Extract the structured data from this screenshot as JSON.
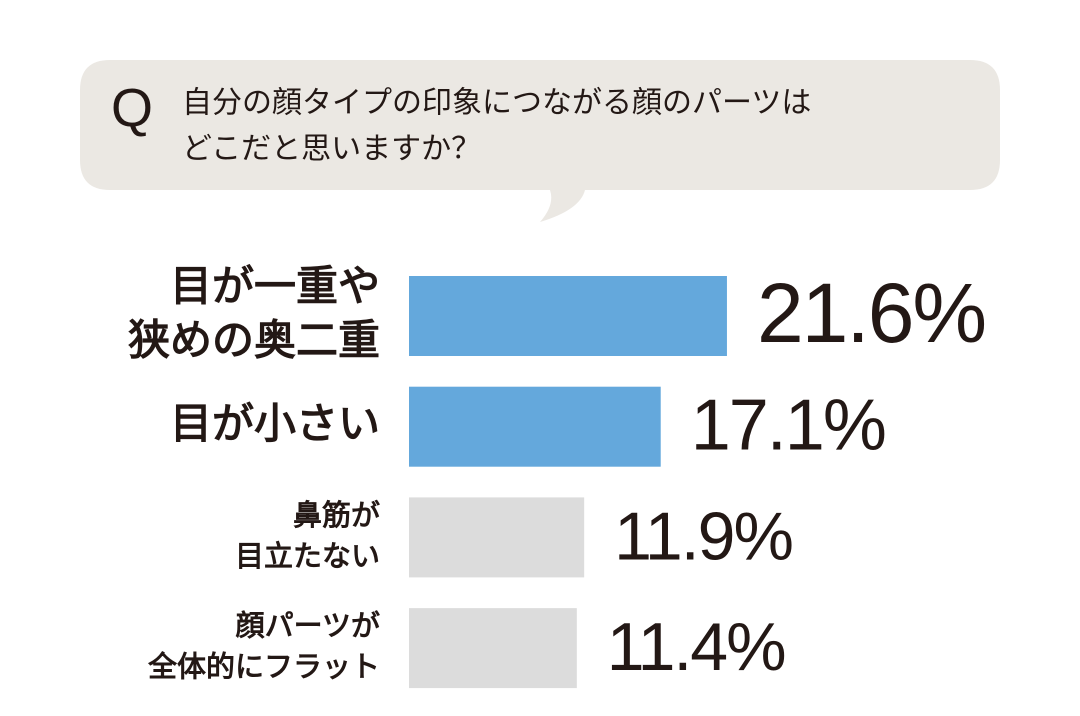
{
  "question_mark": "Q",
  "question": [
    "自分の顔タイプの印象につながる顔のパーツは",
    "どこだと思いますか？"
  ],
  "chart_data": {
    "type": "bar",
    "orientation": "horizontal",
    "categories": [
      [
        "目が一重や",
        "狭めの奥二重"
      ],
      [
        "目が小さい"
      ],
      [
        "鼻筋が",
        "目立たない"
      ],
      [
        "顔パーツが",
        "全体的にフラット"
      ]
    ],
    "values": [
      21.6,
      17.1,
      11.9,
      11.4
    ],
    "value_labels": [
      "21.6%",
      "17.1%",
      "11.9%",
      "11.4%"
    ],
    "colors": [
      "#64a8dc",
      "#64a8dc",
      "#dcdcdc",
      "#dcdcdc"
    ]
  }
}
